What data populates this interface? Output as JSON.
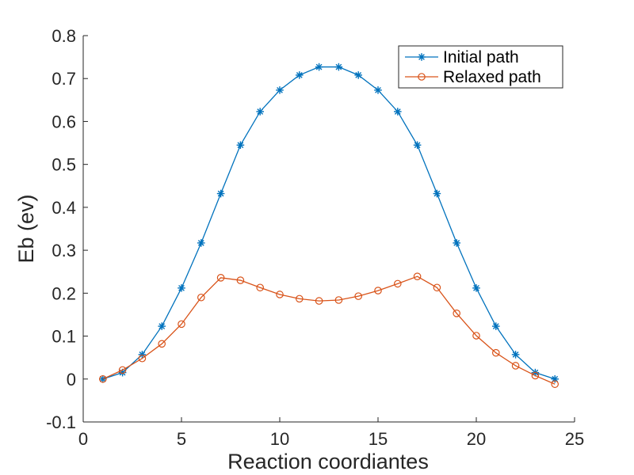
{
  "chart_data": {
    "type": "line",
    "xlabel": "Reaction coordiantes",
    "ylabel": "Eb (ev)",
    "xlim": [
      0,
      25
    ],
    "ylim": [
      -0.1,
      0.8
    ],
    "xticks": [
      0,
      5,
      10,
      15,
      20,
      25
    ],
    "xtick_labels": [
      "0",
      "5",
      "10",
      "15",
      "20",
      "25"
    ],
    "yticks": [
      -0.1,
      0,
      0.1,
      0.2,
      0.3,
      0.4,
      0.5,
      0.6,
      0.7,
      0.8
    ],
    "ytick_labels": [
      "-0.1",
      "0",
      "0.1",
      "0.2",
      "0.3",
      "0.4",
      "0.5",
      "0.6",
      "0.7",
      "0.8"
    ],
    "grid": false,
    "legend_position": "top-right",
    "x": [
      1,
      2,
      3,
      4,
      5,
      6,
      7,
      8,
      9,
      10,
      11,
      12,
      13,
      14,
      15,
      16,
      17,
      18,
      19,
      20,
      21,
      22,
      23,
      24
    ],
    "series": [
      {
        "name": "Initial path",
        "color": "#0072BD",
        "marker": "asterisk",
        "values": [
          0.0,
          0.015,
          0.057,
          0.123,
          0.212,
          0.317,
          0.432,
          0.545,
          0.623,
          0.673,
          0.708,
          0.727,
          0.727,
          0.708,
          0.673,
          0.623,
          0.545,
          0.432,
          0.317,
          0.212,
          0.123,
          0.057,
          0.015,
          0.0
        ]
      },
      {
        "name": "Relaxed path",
        "color": "#D95319",
        "marker": "circle",
        "values": [
          0.0,
          0.021,
          0.048,
          0.082,
          0.128,
          0.19,
          0.236,
          0.23,
          0.213,
          0.197,
          0.187,
          0.182,
          0.184,
          0.193,
          0.206,
          0.222,
          0.239,
          0.213,
          0.153,
          0.101,
          0.061,
          0.031,
          0.008,
          -0.012
        ]
      }
    ]
  }
}
